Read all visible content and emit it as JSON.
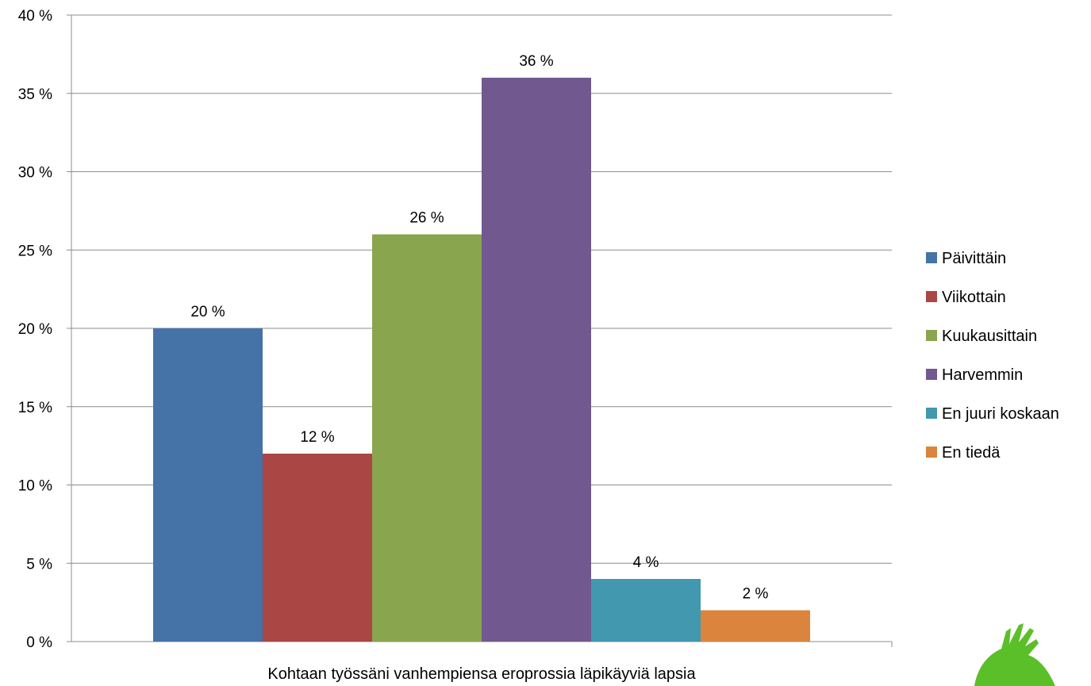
{
  "chart_data": {
    "type": "bar",
    "title": "",
    "xlabel": "Kohtaan työssäni vanhempiensa eroprossia läpikäyviä lapsia",
    "ylabel": "",
    "ylim": [
      0,
      40
    ],
    "yticks": [
      0,
      5,
      10,
      15,
      20,
      25,
      30,
      35,
      40
    ],
    "ytick_labels": [
      "0 %",
      "5 %",
      "10 %",
      "15 %",
      "20 %",
      "25 %",
      "30 %",
      "35 %",
      "40 %"
    ],
    "grid": true,
    "legend_position": "right",
    "series": [
      {
        "name": "Päivittäin",
        "value": 20,
        "label": "20 %",
        "color": "#4572a7"
      },
      {
        "name": "Viikottain",
        "value": 12,
        "label": "12 %",
        "color": "#aa4643"
      },
      {
        "name": "Kuukausittain",
        "value": 26,
        "label": "26 %",
        "color": "#89a54e"
      },
      {
        "name": "Harvemmin",
        "value": 36,
        "label": "36 %",
        "color": "#71588f"
      },
      {
        "name": "En juuri koskaan",
        "value": 4,
        "label": "4 %",
        "color": "#4198af"
      },
      {
        "name": "En tiedä",
        "value": 2,
        "label": "2 %",
        "color": "#db843d"
      }
    ]
  },
  "logo": {
    "icon": "green-hand-logo",
    "color": "#5bbf2a"
  }
}
